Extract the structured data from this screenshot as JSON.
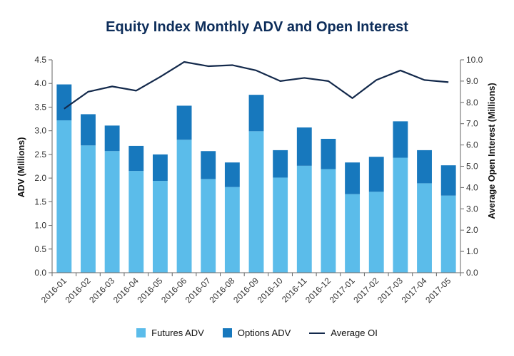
{
  "chart_data": {
    "type": "bar",
    "title": "Equity Index Monthly ADV and Open Interest",
    "ylabel": "ADV (Millions)",
    "y2label": "Average Open Interest (Millions)",
    "ylim": [
      0,
      4.5
    ],
    "y2lim": [
      0,
      10
    ],
    "yticks": [
      "0.0",
      "0.5",
      "1.0",
      "1.5",
      "2.0",
      "2.5",
      "3.0",
      "3.5",
      "4.0",
      "4.5"
    ],
    "y2ticks": [
      "0.0",
      "1.0",
      "2.0",
      "3.0",
      "4.0",
      "5.0",
      "6.0",
      "7.0",
      "8.0",
      "9.0",
      "10.0"
    ],
    "stacked": true,
    "categories": [
      "2016-01",
      "2016-02",
      "2016-03",
      "2016-04",
      "2016-05",
      "2016-06",
      "2016-07",
      "2016-08",
      "2016-09",
      "2016-10",
      "2016-11",
      "2016-12",
      "2017-01",
      "2017-02",
      "2017-03",
      "2017-04",
      "2017-05"
    ],
    "series": [
      {
        "name": "Futures ADV",
        "type": "bar",
        "color": "#5bbcea",
        "values": [
          3.22,
          2.69,
          2.57,
          2.15,
          1.94,
          2.81,
          1.98,
          1.81,
          2.99,
          2.01,
          2.26,
          2.19,
          1.66,
          1.71,
          2.43,
          1.89,
          1.63
        ]
      },
      {
        "name": "Options ADV",
        "type": "bar",
        "color": "#1778bd",
        "values": [
          0.76,
          0.66,
          0.54,
          0.53,
          0.56,
          0.72,
          0.59,
          0.52,
          0.77,
          0.58,
          0.81,
          0.64,
          0.67,
          0.74,
          0.77,
          0.7,
          0.64
        ]
      },
      {
        "name": "Average OI",
        "type": "line",
        "axis": "right",
        "color": "#13294b",
        "values": [
          7.7,
          8.5,
          8.75,
          8.55,
          9.2,
          9.9,
          9.7,
          9.75,
          9.5,
          9.0,
          9.15,
          9.0,
          8.2,
          9.05,
          9.5,
          9.05,
          8.95
        ]
      }
    ],
    "legend": "bottom",
    "grid": false
  }
}
